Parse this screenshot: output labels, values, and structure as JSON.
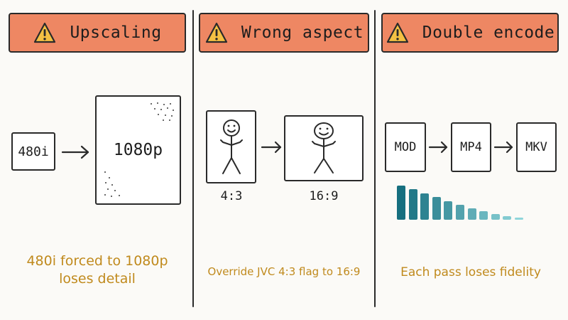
{
  "panels": [
    {
      "title": "Upscaling",
      "source_label": "480i",
      "target_label": "1080p",
      "caption_lines": [
        "480i forced to 1080p",
        "loses detail"
      ]
    },
    {
      "title": "Wrong aspect",
      "left_ratio": "4:3",
      "right_ratio": "16:9",
      "caption": "Override JVC 4:3 flag to 16:9"
    },
    {
      "title": "Double encode",
      "stages": [
        "MOD",
        "MP4",
        "MKV"
      ],
      "fidelity_levels": [
        1.0,
        0.9,
        0.78,
        0.66,
        0.55,
        0.44,
        0.33,
        0.24,
        0.16,
        0.1,
        0.06
      ],
      "caption": "Each pass loses fidelity"
    }
  ],
  "colors": {
    "banner": "#ee8763",
    "warning_icon": "#f4c043",
    "caption": "#c08a1d",
    "bar_dark": "#166f7f",
    "bar_light": "#8fd5da"
  }
}
